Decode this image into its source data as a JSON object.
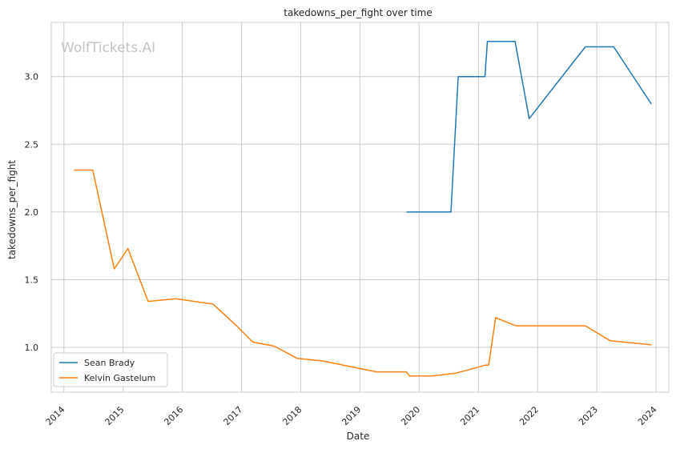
{
  "watermark": "WolfTickets.AI",
  "chart_data": {
    "type": "line",
    "title": "takedowns_per_fight over time",
    "xlabel": "Date",
    "ylabel": "takedowns_per_fight",
    "xlim": [
      "2013-10-15",
      "2024-03-20"
    ],
    "ylim": [
      0.67,
      3.4
    ],
    "x_ticks": [
      "2014",
      "2015",
      "2016",
      "2017",
      "2018",
      "2019",
      "2020",
      "2021",
      "2022",
      "2023",
      "2024"
    ],
    "y_ticks": [
      "1.0",
      "1.5",
      "2.0",
      "2.5",
      "3.0"
    ],
    "grid": true,
    "legend_position": "lower-left",
    "series": [
      {
        "name": "Sean Brady",
        "color": "#1f77b4",
        "points": [
          {
            "x": "2019-10-18",
            "y": 2.0
          },
          {
            "x": "2020-07-15",
            "y": 2.0
          },
          {
            "x": "2020-08-29",
            "y": 3.0
          },
          {
            "x": "2021-02-10",
            "y": 3.0
          },
          {
            "x": "2021-02-25",
            "y": 3.26
          },
          {
            "x": "2021-08-15",
            "y": 3.26
          },
          {
            "x": "2021-11-10",
            "y": 2.69
          },
          {
            "x": "2022-10-22",
            "y": 3.22
          },
          {
            "x": "2023-04-15",
            "y": 3.22
          },
          {
            "x": "2023-12-02",
            "y": 2.8
          }
        ]
      },
      {
        "name": "Kelvin Gastelum",
        "color": "#ff7f0e",
        "points": [
          {
            "x": "2014-03-08",
            "y": 2.31
          },
          {
            "x": "2014-06-28",
            "y": 2.31
          },
          {
            "x": "2014-11-08",
            "y": 1.58
          },
          {
            "x": "2015-01-31",
            "y": 1.73
          },
          {
            "x": "2015-06-05",
            "y": 1.34
          },
          {
            "x": "2015-11-21",
            "y": 1.36
          },
          {
            "x": "2016-07-09",
            "y": 1.32
          },
          {
            "x": "2016-12-01",
            "y": 1.16
          },
          {
            "x": "2017-03-11",
            "y": 1.04
          },
          {
            "x": "2017-07-22",
            "y": 1.01
          },
          {
            "x": "2017-12-09",
            "y": 0.92
          },
          {
            "x": "2018-05-19",
            "y": 0.9
          },
          {
            "x": "2019-04-13",
            "y": 0.82
          },
          {
            "x": "2019-10-15",
            "y": 0.82
          },
          {
            "x": "2019-11-02",
            "y": 0.79
          },
          {
            "x": "2020-03-20",
            "y": 0.79
          },
          {
            "x": "2020-08-15",
            "y": 0.81
          },
          {
            "x": "2021-02-13",
            "y": 0.87
          },
          {
            "x": "2021-03-05",
            "y": 0.87
          },
          {
            "x": "2021-04-17",
            "y": 1.22
          },
          {
            "x": "2021-08-21",
            "y": 1.16
          },
          {
            "x": "2022-10-22",
            "y": 1.16
          },
          {
            "x": "2023-03-25",
            "y": 1.05
          },
          {
            "x": "2023-12-02",
            "y": 1.02
          }
        ]
      }
    ]
  }
}
